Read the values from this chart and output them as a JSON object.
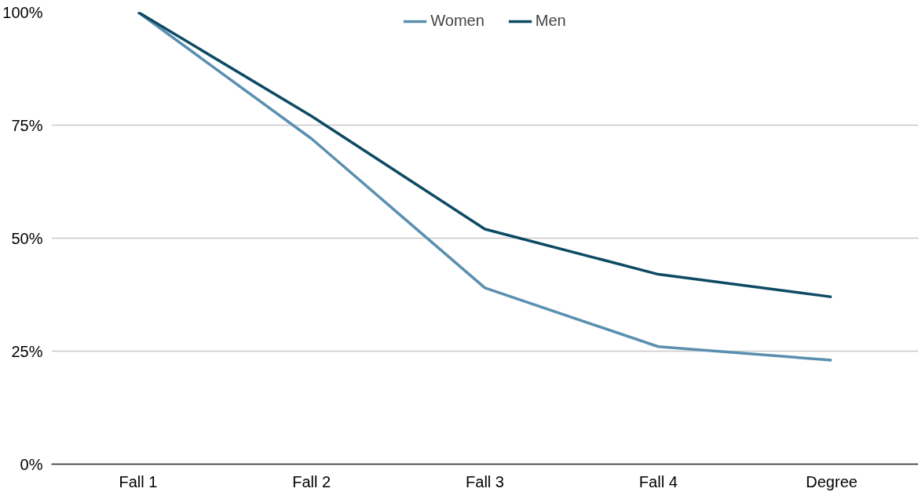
{
  "chart_data": {
    "type": "line",
    "categories": [
      "Fall 1",
      "Fall 2",
      "Fall 3",
      "Fall 4",
      "Degree"
    ],
    "series": [
      {
        "name": "Women",
        "color": "#5b8fb0",
        "values": [
          100,
          72,
          39,
          26,
          23
        ]
      },
      {
        "name": "Men",
        "color": "#0d4a63",
        "values": [
          100,
          77,
          52,
          42,
          37
        ]
      }
    ],
    "ylim": [
      0,
      100
    ],
    "yticks": [
      {
        "value": 0,
        "label": "0%"
      },
      {
        "value": 25,
        "label": "25%"
      },
      {
        "value": 50,
        "label": "50%"
      },
      {
        "value": 75,
        "label": "75%"
      },
      {
        "value": 100,
        "label": "100%"
      }
    ],
    "grid": "y",
    "legend": "top",
    "line_style": "solid",
    "marker": "none"
  }
}
